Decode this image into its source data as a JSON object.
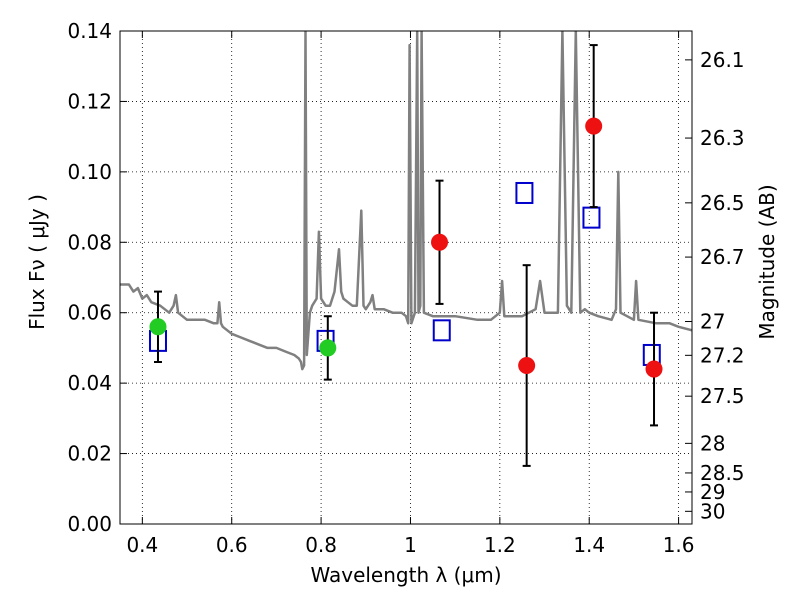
{
  "chart_data": {
    "type": "scatter",
    "xlabel": "Wavelength  λ (μm)",
    "ylabel": "Flux  Fν  ( μJy )",
    "y2label": "Magnitude (AB)",
    "xlim": [
      0.35,
      1.63
    ],
    "ylim": [
      0.0,
      0.14
    ],
    "x_ticks": [
      0.4,
      0.6,
      0.8,
      1.0,
      1.2,
      1.4,
      1.6
    ],
    "x_tick_labels": [
      "0.4",
      "0.6",
      "0.8",
      "1",
      "1.2",
      "1.4",
      "1.6"
    ],
    "y_ticks": [
      0.0,
      0.02,
      0.04,
      0.06,
      0.08,
      0.1,
      0.12,
      0.14
    ],
    "y_tick_labels": [
      "0.00",
      "0.02",
      "0.04",
      "0.06",
      "0.08",
      "0.10",
      "0.12",
      "0.14"
    ],
    "mag_ticks": [
      {
        "label": "26.1",
        "flux": 0.1318
      },
      {
        "label": "26.3",
        "flux": 0.1096
      },
      {
        "label": "26.5",
        "flux": 0.0912
      },
      {
        "label": "26.7",
        "flux": 0.0758
      },
      {
        "label": "27",
        "flux": 0.0575
      },
      {
        "label": "27.2",
        "flux": 0.0479
      },
      {
        "label": "27.5",
        "flux": 0.0363
      },
      {
        "label": "28",
        "flux": 0.0229
      },
      {
        "label": "28.5",
        "flux": 0.0145
      },
      {
        "label": "29",
        "flux": 0.0091
      },
      {
        "label": "30",
        "flux": 0.0036
      }
    ],
    "grid": true,
    "series": [
      {
        "marker": "circle",
        "color": "#22cc22",
        "points": [
          {
            "x": 0.435,
            "y": 0.056,
            "err": 0.01
          },
          {
            "x": 0.815,
            "y": 0.05,
            "err": 0.009
          }
        ]
      },
      {
        "marker": "circle",
        "color": "#ee1111",
        "points": [
          {
            "x": 1.065,
            "y": 0.08,
            "err": 0.0175
          },
          {
            "x": 1.26,
            "y": 0.045,
            "err": 0.0285
          },
          {
            "x": 1.41,
            "y": 0.113,
            "err": 0.023
          },
          {
            "x": 1.545,
            "y": 0.044,
            "err": 0.016
          }
        ]
      },
      {
        "marker": "square-open",
        "color": "#0000cc",
        "points": [
          {
            "x": 0.435,
            "y": 0.052
          },
          {
            "x": 0.81,
            "y": 0.052
          },
          {
            "x": 1.07,
            "y": 0.055
          },
          {
            "x": 1.255,
            "y": 0.094
          },
          {
            "x": 1.405,
            "y": 0.087
          },
          {
            "x": 1.54,
            "y": 0.048
          }
        ]
      },
      {
        "marker": "line",
        "color": "#808080",
        "points": [
          [
            0.35,
            0.068
          ],
          [
            0.37,
            0.068
          ],
          [
            0.38,
            0.066
          ],
          [
            0.39,
            0.067
          ],
          [
            0.4,
            0.064
          ],
          [
            0.41,
            0.065
          ],
          [
            0.42,
            0.063
          ],
          [
            0.44,
            0.062
          ],
          [
            0.46,
            0.06
          ],
          [
            0.47,
            0.062
          ],
          [
            0.475,
            0.065
          ],
          [
            0.48,
            0.06
          ],
          [
            0.5,
            0.058
          ],
          [
            0.52,
            0.058
          ],
          [
            0.54,
            0.058
          ],
          [
            0.56,
            0.057
          ],
          [
            0.568,
            0.057
          ],
          [
            0.572,
            0.063
          ],
          [
            0.576,
            0.057
          ],
          [
            0.58,
            0.056
          ],
          [
            0.6,
            0.054
          ],
          [
            0.62,
            0.053
          ],
          [
            0.64,
            0.052
          ],
          [
            0.66,
            0.051
          ],
          [
            0.68,
            0.05
          ],
          [
            0.7,
            0.05
          ],
          [
            0.72,
            0.049
          ],
          [
            0.74,
            0.048
          ],
          [
            0.75,
            0.047
          ],
          [
            0.755,
            0.046
          ],
          [
            0.758,
            0.044
          ],
          [
            0.762,
            0.045
          ],
          [
            0.765,
            0.14
          ],
          [
            0.768,
            0.048
          ],
          [
            0.772,
            0.055
          ],
          [
            0.775,
            0.06
          ],
          [
            0.78,
            0.062
          ],
          [
            0.79,
            0.064
          ],
          [
            0.795,
            0.083
          ],
          [
            0.8,
            0.064
          ],
          [
            0.81,
            0.062
          ],
          [
            0.82,
            0.062
          ],
          [
            0.83,
            0.066
          ],
          [
            0.84,
            0.078
          ],
          [
            0.845,
            0.066
          ],
          [
            0.85,
            0.064
          ],
          [
            0.86,
            0.063
          ],
          [
            0.87,
            0.062
          ],
          [
            0.88,
            0.062
          ],
          [
            0.89,
            0.089
          ],
          [
            0.895,
            0.062
          ],
          [
            0.9,
            0.061
          ],
          [
            0.91,
            0.063
          ],
          [
            0.915,
            0.065
          ],
          [
            0.92,
            0.061
          ],
          [
            0.94,
            0.061
          ],
          [
            0.96,
            0.06
          ],
          [
            0.98,
            0.06
          ],
          [
            0.99,
            0.059
          ],
          [
            0.995,
            0.057
          ],
          [
            0.998,
            0.136
          ],
          [
            1.002,
            0.057
          ],
          [
            1.01,
            0.06
          ],
          [
            1.015,
            0.14
          ],
          [
            1.018,
            0.06
          ],
          [
            1.022,
            0.062
          ],
          [
            1.025,
            0.14
          ],
          [
            1.03,
            0.06
          ],
          [
            1.05,
            0.059
          ],
          [
            1.08,
            0.059
          ],
          [
            1.1,
            0.059
          ],
          [
            1.15,
            0.058
          ],
          [
            1.18,
            0.058
          ],
          [
            1.2,
            0.06
          ],
          [
            1.205,
            0.069
          ],
          [
            1.21,
            0.059
          ],
          [
            1.25,
            0.059
          ],
          [
            1.28,
            0.061
          ],
          [
            1.29,
            0.069
          ],
          [
            1.3,
            0.06
          ],
          [
            1.33,
            0.06
          ],
          [
            1.34,
            0.14
          ],
          [
            1.35,
            0.062
          ],
          [
            1.36,
            0.06
          ],
          [
            1.37,
            0.14
          ],
          [
            1.38,
            0.06
          ],
          [
            1.39,
            0.061
          ],
          [
            1.4,
            0.06
          ],
          [
            1.42,
            0.059
          ],
          [
            1.45,
            0.058
          ],
          [
            1.46,
            0.061
          ],
          [
            1.465,
            0.1
          ],
          [
            1.47,
            0.06
          ],
          [
            1.5,
            0.058
          ],
          [
            1.505,
            0.069
          ],
          [
            1.51,
            0.058
          ],
          [
            1.55,
            0.057
          ],
          [
            1.58,
            0.057
          ],
          [
            1.6,
            0.056
          ],
          [
            1.63,
            0.055
          ]
        ]
      }
    ]
  }
}
